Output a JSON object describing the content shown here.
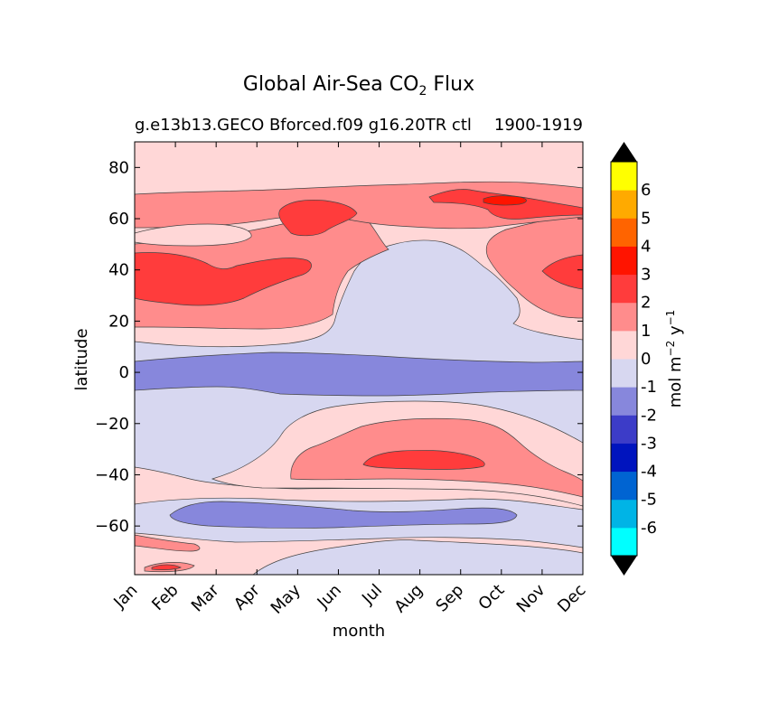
{
  "chart_data": {
    "type": "contour",
    "title_main": "Global Air-Sea CO",
    "title_sub_script": "2",
    "title_tail": " Flux",
    "subtitle": "g.e13b13.GECO Bforced.f09 g16.20TR ctl",
    "subtitle_years": "1900-1919",
    "xlabel": "month",
    "ylabel": "latitude",
    "x_categories": [
      "Jan",
      "Feb",
      "Mar",
      "Apr",
      "May",
      "Jun",
      "Jul",
      "Aug",
      "Sep",
      "Oct",
      "Nov",
      "Dec"
    ],
    "ylim": [
      -79,
      90
    ],
    "y_ticks": [
      "80",
      "60",
      "40",
      "20",
      "0",
      "−20",
      "−40",
      "−60"
    ],
    "y_tick_values": [
      80,
      60,
      40,
      20,
      0,
      -20,
      -40,
      -60
    ],
    "colorbar": {
      "label": "mol m",
      "label_exp1": "−2",
      "label_mid": "  y",
      "label_exp2": "−1",
      "levels": [
        "-6",
        "-5",
        "-4",
        "-3",
        "-2",
        "-1",
        "0",
        "1",
        "2",
        "3",
        "4",
        "5",
        "6"
      ],
      "colors": [
        "#00ffff",
        "#00b4e6",
        "#0064d2",
        "#0014be",
        "#3c3cc8",
        "#8787dc",
        "#d7d7f0",
        "#ffd7d7",
        "#ff8c8c",
        "#ff3c3c",
        "#ff1400",
        "#ff6400",
        "#ffaa00",
        "#ffff00"
      ],
      "extend_colors": {
        "low": "#000000",
        "high": "#000000"
      }
    },
    "regions": [
      {
        "level": "0 to 1",
        "color": "#ffd7d7"
      },
      {
        "level": "1 to 2",
        "color": "#ff8c8c"
      },
      {
        "level": "2 to 3",
        "color": "#ff3c3c"
      },
      {
        "level": "-1 to 0",
        "color": "#d7d7f0"
      },
      {
        "level": "-2 to -1",
        "color": "#8787dc"
      }
    ]
  }
}
